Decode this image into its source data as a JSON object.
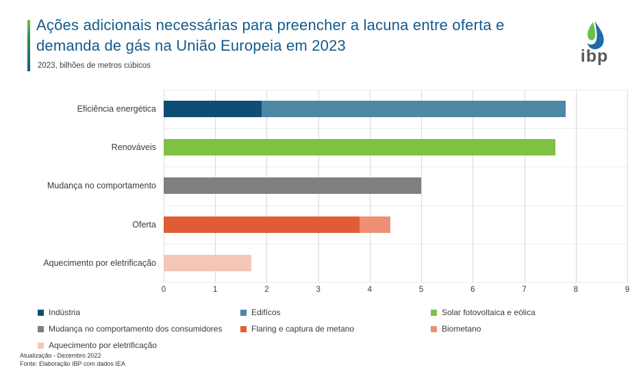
{
  "header": {
    "logo_text": "ibp",
    "logo_green": "#6abf4b",
    "logo_blue": "#1b6ca8",
    "accent_gradient": [
      "#6abf4b",
      "#135a8c"
    ],
    "title_color": "#135a8c"
  },
  "chart_data": {
    "type": "bar",
    "orientation": "horizontal",
    "stacked": true,
    "title": "Ações adicionais necessárias para preencher a lacuna entre oferta e demanda de gás na União Europeia em 2023",
    "subtitle": "2023, bilhões de metros cúbicos",
    "unit": "bilhões de metros cúbicos",
    "xlim": [
      0,
      9
    ],
    "xticks": [
      "0",
      "1",
      "2",
      "3",
      "4",
      "5",
      "6",
      "7",
      "8",
      "9"
    ],
    "grid": true,
    "gridline_color": "#d9d9d9",
    "categories": [
      "Eficiência energética",
      "Renováveis",
      "Mudança no comportamento",
      "Oferta",
      "Aquecimento por eletrificação"
    ],
    "rows": [
      {
        "category": "Eficiência energética",
        "segments": [
          {
            "label": "Indústria",
            "value": 1.9,
            "color": "#0e4e74"
          },
          {
            "label": "Edifícos",
            "value": 5.9,
            "color": "#4e87a6"
          }
        ]
      },
      {
        "category": "Renováveis",
        "segments": [
          {
            "label": "Solar fotovoltaica e eólica",
            "value": 7.6,
            "color": "#7dc242"
          }
        ]
      },
      {
        "category": "Mudança no comportamento",
        "segments": [
          {
            "label": "Mudança no comportamento dos consumidores",
            "value": 5.0,
            "color": "#7f7f7f"
          }
        ]
      },
      {
        "category": "Oferta",
        "segments": [
          {
            "label": "Flaring e captura de metano",
            "value": 3.8,
            "color": "#e05c35"
          },
          {
            "label": "Biometano",
            "value": 0.6,
            "color": "#ee9074"
          }
        ]
      },
      {
        "category": "Aquecimento por eletrificação",
        "segments": [
          {
            "label": "Aquecimento por eletrificação",
            "value": 1.7,
            "color": "#f4c6b6"
          }
        ]
      }
    ],
    "legend": {
      "position": "bottom",
      "items": [
        {
          "label": "Indústria",
          "color": "#0e4e74"
        },
        {
          "label": "Edifícos",
          "color": "#4e87a6"
        },
        {
          "label": "Solar fotovoltaica e eólica",
          "color": "#7dc242"
        },
        {
          "label": "Mudança no comportamento dos consumidores",
          "color": "#7f7f7f"
        },
        {
          "label": "Flaring e captura de metano",
          "color": "#e05c35"
        },
        {
          "label": "Biometano",
          "color": "#ee9074"
        },
        {
          "label": "Aquecimento por eletrificação",
          "color": "#f4c6b6"
        }
      ]
    }
  },
  "footer": {
    "line1": "Atualização - Dezembro 2022",
    "line2": "Fonte: Elaboração IBP com dados IEA"
  }
}
